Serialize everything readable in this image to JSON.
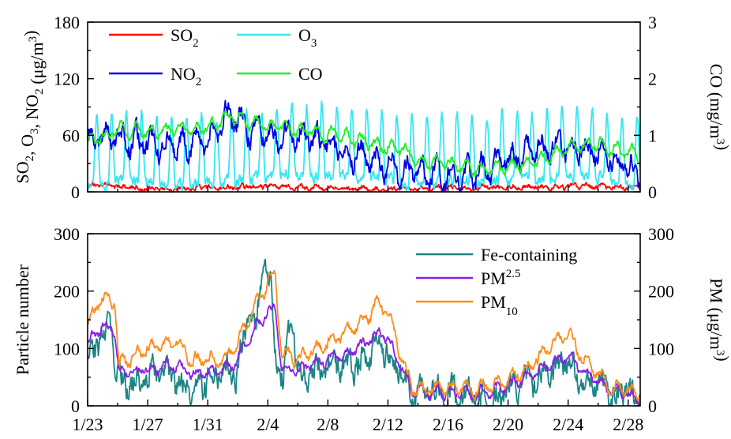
{
  "chart_data": [
    {
      "type": "line",
      "panel": "top",
      "ylabel_left": "SO2, O3, NO2 (μg/m3)",
      "ylabel_right": "CO (mg/m3)",
      "ylim_left": [
        0,
        180
      ],
      "yticks_left": [
        "0",
        "60",
        "120",
        "180"
      ],
      "ylim_right": [
        0,
        3
      ],
      "yticks_right": [
        "0",
        "1",
        "2",
        "3"
      ],
      "xlim_days": [
        0,
        36.8
      ],
      "x_start_date": "1/23",
      "x_end_date": "2/28",
      "legend_placement": "top-left",
      "series": [
        {
          "name": "SO",
          "sub": "2",
          "color": "#ff0000",
          "axis": "left",
          "knots": [
            [
              0,
              8
            ],
            [
              3,
              4
            ],
            [
              6,
              3
            ],
            [
              9,
              5
            ],
            [
              12,
              6
            ],
            [
              15,
              4
            ],
            [
              18,
              4
            ],
            [
              21,
              3
            ],
            [
              24,
              4
            ],
            [
              27,
              5
            ],
            [
              30,
              5
            ],
            [
              33,
              6
            ],
            [
              36.8,
              4
            ]
          ],
          "hourly_noise": 2,
          "daily_amp": 1.5
        },
        {
          "name": "O",
          "sub": "3",
          "color": "#33e6f2",
          "axis": "left",
          "knots": [
            [
              0,
              30
            ],
            [
              2,
              50
            ],
            [
              4,
              40
            ],
            [
              6,
              30
            ],
            [
              8,
              40
            ],
            [
              10,
              50
            ],
            [
              12,
              60
            ],
            [
              13,
              75
            ],
            [
              15,
              70
            ],
            [
              17,
              70
            ],
            [
              19,
              60
            ],
            [
              21,
              40
            ],
            [
              23,
              40
            ],
            [
              25,
              45
            ],
            [
              27,
              40
            ],
            [
              29,
              50
            ],
            [
              31,
              60
            ],
            [
              33,
              75
            ],
            [
              35,
              55
            ],
            [
              36.8,
              30
            ]
          ],
          "hourly_noise": 5,
          "daily_amp": 45,
          "spiky": true
        },
        {
          "name": "NO",
          "sub": "2",
          "color": "#0000e6",
          "axis": "left",
          "knots": [
            [
              0,
              55
            ],
            [
              2,
              60
            ],
            [
              4,
              50
            ],
            [
              6,
              50
            ],
            [
              8,
              55
            ],
            [
              9.5,
              80
            ],
            [
              11,
              65
            ],
            [
              13,
              60
            ],
            [
              15,
              55
            ],
            [
              17,
              45
            ],
            [
              19,
              35
            ],
            [
              21,
              25
            ],
            [
              23,
              20
            ],
            [
              25,
              20
            ],
            [
              27,
              25
            ],
            [
              29,
              40
            ],
            [
              31,
              50
            ],
            [
              33,
              45
            ],
            [
              35,
              35
            ],
            [
              36.8,
              20
            ]
          ],
          "hourly_noise": 8,
          "daily_amp": 12
        },
        {
          "name": "CO",
          "sub": "",
          "color": "#22ee22",
          "axis": "right",
          "knots": [
            [
              0,
              0.85
            ],
            [
              2,
              1.1
            ],
            [
              4,
              1.05
            ],
            [
              6,
              1.1
            ],
            [
              8,
              1.15
            ],
            [
              9.5,
              1.35
            ],
            [
              11,
              1.2
            ],
            [
              13,
              1.15
            ],
            [
              15,
              1.05
            ],
            [
              17,
              1.0
            ],
            [
              19,
              0.85
            ],
            [
              21,
              0.75
            ],
            [
              22,
              0.55
            ],
            [
              24,
              0.5
            ],
            [
              26,
              0.4
            ],
            [
              28,
              0.45
            ],
            [
              30,
              0.55
            ],
            [
              32,
              0.8
            ],
            [
              34,
              0.85
            ],
            [
              36,
              0.7
            ],
            [
              36.8,
              0.65
            ]
          ],
          "hourly_noise": 0.05,
          "daily_amp": 0.1
        }
      ]
    },
    {
      "type": "line",
      "panel": "bottom",
      "ylabel_left": "Particle number",
      "ylabel_right": "PM (μg/m3)",
      "ylim_left": [
        0,
        300
      ],
      "yticks_left": [
        "0",
        "100",
        "200",
        "300"
      ],
      "ylim_right": [
        0,
        300
      ],
      "yticks_right": [
        "0",
        "100",
        "200",
        "300"
      ],
      "xlim_days": [
        0,
        36.8
      ],
      "x_start_date": "1/23",
      "x_end_date": "2/28",
      "xticks": [
        {
          "day": 0,
          "label": "1/23"
        },
        {
          "day": 4,
          "label": "1/27"
        },
        {
          "day": 8,
          "label": "1/31"
        },
        {
          "day": 12,
          "label": "2/4"
        },
        {
          "day": 16,
          "label": "2/8"
        },
        {
          "day": 20,
          "label": "2/12"
        },
        {
          "day": 24,
          "label": "2/16"
        },
        {
          "day": 28,
          "label": "2/20"
        },
        {
          "day": 32,
          "label": "2/24"
        },
        {
          "day": 36,
          "label": "2/28"
        }
      ],
      "legend_placement": "top-right",
      "series": [
        {
          "name": "Fe-containing",
          "sub": "",
          "color": "#1a8585",
          "axis": "left",
          "knots": [
            [
              0,
              80
            ],
            [
              1,
              120
            ],
            [
              1.6,
              140
            ],
            [
              1.9,
              40
            ],
            [
              3,
              40
            ],
            [
              5,
              60
            ],
            [
              6,
              35
            ],
            [
              8,
              40
            ],
            [
              10,
              60
            ],
            [
              10.8,
              180
            ],
            [
              11.2,
              140
            ],
            [
              11.8,
              250
            ],
            [
              12.2,
              200
            ],
            [
              12.6,
              60
            ],
            [
              13,
              50
            ],
            [
              13.6,
              150
            ],
            [
              14,
              50
            ],
            [
              16,
              70
            ],
            [
              18,
              70
            ],
            [
              19.5,
              120
            ],
            [
              20,
              90
            ],
            [
              21,
              60
            ],
            [
              21.5,
              20
            ],
            [
              23,
              25
            ],
            [
              25,
              15
            ],
            [
              27,
              10
            ],
            [
              29,
              35
            ],
            [
              31,
              60
            ],
            [
              32,
              80
            ],
            [
              33,
              40
            ],
            [
              35,
              25
            ],
            [
              36,
              35
            ],
            [
              36.8,
              10
            ]
          ],
          "hourly_noise": 18,
          "daily_amp": 12
        },
        {
          "name": "PM",
          "sub": "2.5",
          "color": "#8a1fe6",
          "axis": "right",
          "knots": [
            [
              0,
              110
            ],
            [
              1,
              140
            ],
            [
              1.8,
              130
            ],
            [
              2.1,
              55
            ],
            [
              4,
              65
            ],
            [
              6,
              70
            ],
            [
              7,
              55
            ],
            [
              9,
              60
            ],
            [
              10,
              80
            ],
            [
              11,
              130
            ],
            [
              12,
              165
            ],
            [
              12.5,
              170
            ],
            [
              12.9,
              70
            ],
            [
              14,
              60
            ],
            [
              16,
              80
            ],
            [
              18,
              100
            ],
            [
              19.5,
              130
            ],
            [
              20,
              115
            ],
            [
              21,
              60
            ],
            [
              21.6,
              25
            ],
            [
              24,
              25
            ],
            [
              26,
              20
            ],
            [
              28,
              35
            ],
            [
              30,
              60
            ],
            [
              31,
              75
            ],
            [
              32,
              85
            ],
            [
              33,
              60
            ],
            [
              35,
              25
            ],
            [
              36.8,
              15
            ]
          ],
          "hourly_noise": 5,
          "daily_amp": 8
        },
        {
          "name": "PM",
          "sub": "10",
          "color": "#ff8c1a",
          "axis": "right",
          "knots": [
            [
              0,
              140
            ],
            [
              0.8,
              185
            ],
            [
              1.8,
              185
            ],
            [
              2.1,
              70
            ],
            [
              4,
              100
            ],
            [
              6,
              110
            ],
            [
              7,
              80
            ],
            [
              9,
              80
            ],
            [
              10,
              110
            ],
            [
              11,
              170
            ],
            [
              12,
              215
            ],
            [
              12.5,
              230
            ],
            [
              12.9,
              90
            ],
            [
              14,
              80
            ],
            [
              16,
              110
            ],
            [
              18,
              140
            ],
            [
              19.5,
              180
            ],
            [
              20,
              160
            ],
            [
              21,
              80
            ],
            [
              21.6,
              30
            ],
            [
              24,
              30
            ],
            [
              26,
              28
            ],
            [
              28,
              45
            ],
            [
              30,
              80
            ],
            [
              31,
              110
            ],
            [
              32,
              130
            ],
            [
              33,
              80
            ],
            [
              35,
              30
            ],
            [
              36.8,
              20
            ]
          ],
          "hourly_noise": 6,
          "daily_amp": 10
        }
      ]
    }
  ]
}
